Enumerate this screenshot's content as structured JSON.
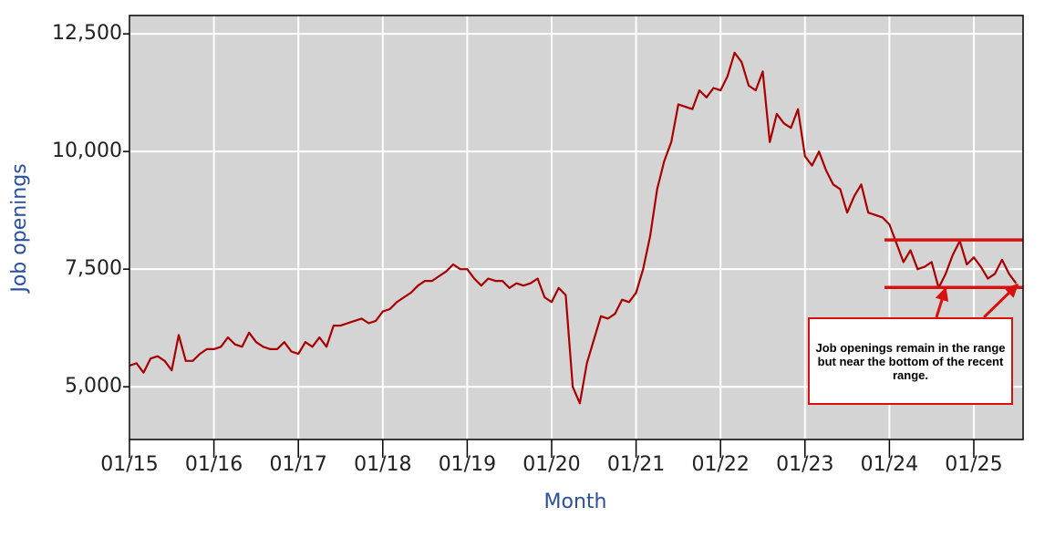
{
  "chart_data": {
    "type": "line",
    "y_label": "Job openings",
    "x_label": "Month",
    "color": "#aa0000",
    "x": [
      "2015-01",
      "2015-02",
      "2015-03",
      "2015-04",
      "2015-05",
      "2015-06",
      "2015-07",
      "2015-08",
      "2015-09",
      "2015-10",
      "2015-11",
      "2015-12",
      "2016-01",
      "2016-02",
      "2016-03",
      "2016-04",
      "2016-05",
      "2016-06",
      "2016-07",
      "2016-08",
      "2016-09",
      "2016-10",
      "2016-11",
      "2016-12",
      "2017-01",
      "2017-02",
      "2017-03",
      "2017-04",
      "2017-05",
      "2017-06",
      "2017-07",
      "2017-08",
      "2017-09",
      "2017-10",
      "2017-11",
      "2017-12",
      "2018-01",
      "2018-02",
      "2018-03",
      "2018-04",
      "2018-05",
      "2018-06",
      "2018-07",
      "2018-08",
      "2018-09",
      "2018-10",
      "2018-11",
      "2018-12",
      "2019-01",
      "2019-02",
      "2019-03",
      "2019-04",
      "2019-05",
      "2019-06",
      "2019-07",
      "2019-08",
      "2019-09",
      "2019-10",
      "2019-11",
      "2019-12",
      "2020-01",
      "2020-02",
      "2020-03",
      "2020-04",
      "2020-05",
      "2020-06",
      "2020-07",
      "2020-08",
      "2020-09",
      "2020-10",
      "2020-11",
      "2020-12",
      "2021-01",
      "2021-02",
      "2021-03",
      "2021-04",
      "2021-05",
      "2021-06",
      "2021-07",
      "2021-08",
      "2021-09",
      "2021-10",
      "2021-11",
      "2021-12",
      "2022-01",
      "2022-02",
      "2022-03",
      "2022-04",
      "2022-05",
      "2022-06",
      "2022-07",
      "2022-08",
      "2022-09",
      "2022-10",
      "2022-11",
      "2022-12",
      "2023-01",
      "2023-02",
      "2023-03",
      "2023-04",
      "2023-05",
      "2023-06",
      "2023-07",
      "2023-08",
      "2023-09",
      "2023-10",
      "2023-11",
      "2023-12",
      "2024-01",
      "2024-02",
      "2024-03",
      "2024-04",
      "2024-05",
      "2024-06",
      "2024-07",
      "2024-08",
      "2024-09",
      "2024-10",
      "2024-11",
      "2024-12",
      "2025-01",
      "2025-02",
      "2025-03",
      "2025-04",
      "2025-05",
      "2025-06",
      "2025-07"
    ],
    "values": [
      5450,
      5500,
      5300,
      5600,
      5650,
      5550,
      5350,
      6100,
      5550,
      5550,
      5700,
      5800,
      5800,
      5850,
      6050,
      5900,
      5850,
      6150,
      5950,
      5850,
      5800,
      5800,
      5950,
      5750,
      5700,
      5950,
      5850,
      6050,
      5850,
      6300,
      6300,
      6350,
      6400,
      6450,
      6350,
      6400,
      6600,
      6650,
      6800,
      6900,
      7000,
      7150,
      7250,
      7250,
      7350,
      7450,
      7600,
      7500,
      7500,
      7300,
      7150,
      7300,
      7250,
      7250,
      7100,
      7200,
      7150,
      7200,
      7300,
      6900,
      6800,
      7100,
      6950,
      5000,
      4650,
      5500,
      6000,
      6500,
      6450,
      6550,
      6850,
      6800,
      7000,
      7500,
      8200,
      9200,
      9800,
      10200,
      11000,
      10950,
      10900,
      11300,
      11150,
      11350,
      11300,
      11600,
      12100,
      11900,
      11400,
      11300,
      11700,
      10200,
      10800,
      10600,
      10500,
      10900,
      9900,
      9700,
      10000,
      9600,
      9300,
      9200,
      8700,
      9050,
      9300,
      8700,
      8650,
      8600,
      8450,
      8050,
      7650,
      7900,
      7500,
      7550,
      7650,
      7100,
      7400,
      7800,
      8100,
      7600,
      7750,
      7550,
      7300,
      7400,
      7700,
      7400,
      7200
    ],
    "xlim": [
      "2015-01",
      "2025-08"
    ],
    "xticks": [
      {
        "value": "2015-01",
        "label": "01/15"
      },
      {
        "value": "2016-01",
        "label": "01/16"
      },
      {
        "value": "2017-01",
        "label": "01/17"
      },
      {
        "value": "2018-01",
        "label": "01/18"
      },
      {
        "value": "2019-01",
        "label": "01/19"
      },
      {
        "value": "2020-01",
        "label": "01/20"
      },
      {
        "value": "2021-01",
        "label": "01/21"
      },
      {
        "value": "2022-01",
        "label": "01/22"
      },
      {
        "value": "2023-01",
        "label": "01/23"
      },
      {
        "value": "2024-01",
        "label": "01/24"
      },
      {
        "value": "2025-01",
        "label": "01/25"
      }
    ],
    "ylim": [
      3880,
      12890
    ],
    "yticks": [
      {
        "value": 5000,
        "label": "5,000"
      },
      {
        "value": 7500,
        "label": "7,500"
      },
      {
        "value": 10000,
        "label": "10,000"
      },
      {
        "value": 12500,
        "label": "12,500"
      }
    ],
    "grid": true,
    "annotation": {
      "text": "Job openings remain in the range but near the bottom of the recent range.",
      "range_lines": [
        8120,
        7110
      ],
      "color": "#d81010"
    }
  }
}
